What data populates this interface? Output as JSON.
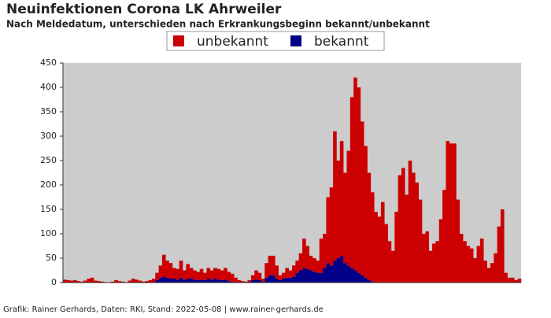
{
  "chart_data": {
    "type": "stacked-bar",
    "title": "Neuinfektionen Corona LK Ahrweiler",
    "subtitle": "Nach Meldedatum, unterschieden nach Erkrankungsbeginn bekannt/unbekannt",
    "footer": "Grafik: Rainer Gerhards, Daten: RKI, Stand: 2022-05-08 | www.rainer-gerhards.de",
    "ylim": [
      0,
      450
    ],
    "yticks": [
      0,
      50,
      100,
      150,
      200,
      250,
      300,
      350,
      400,
      450
    ],
    "legend": "top",
    "background": "#cccccc",
    "series": [
      {
        "name": "unbekannt",
        "color": "#cc0000",
        "values": [
          6,
          5,
          4,
          5,
          3,
          2,
          4,
          8,
          10,
          4,
          3,
          2,
          1,
          0,
          2,
          5,
          3,
          2,
          1,
          4,
          8,
          6,
          4,
          2,
          3,
          5,
          8,
          15,
          25,
          45,
          35,
          32,
          22,
          22,
          35,
          19,
          30,
          22,
          19,
          17,
          22,
          15,
          22,
          19,
          22,
          22,
          20,
          24,
          19,
          16,
          9,
          5,
          3,
          2,
          3,
          10,
          19,
          15,
          6,
          30,
          40,
          40,
          27,
          10,
          12,
          20,
          15,
          23,
          25,
          35,
          60,
          47,
          30,
          28,
          25,
          70,
          70,
          135,
          160,
          265,
          200,
          235,
          185,
          235,
          350,
          395,
          380,
          315,
          270,
          220,
          183,
          145,
          135,
          165,
          120,
          85,
          65,
          145,
          220,
          235,
          180,
          250,
          225,
          205,
          170,
          100,
          105,
          65,
          80,
          85,
          130,
          190,
          290,
          285,
          285,
          170,
          100,
          85,
          75,
          70,
          50,
          75,
          90,
          45,
          30,
          40,
          60,
          115,
          150,
          20,
          10,
          10,
          5,
          8
        ]
      },
      {
        "name": "bekannt",
        "color": "#00008b",
        "values": [
          0,
          0,
          0,
          0,
          0,
          0,
          0,
          0,
          0,
          0,
          0,
          0,
          0,
          0,
          0,
          0,
          0,
          0,
          0,
          0,
          0,
          0,
          0,
          0,
          0,
          0,
          0,
          5,
          10,
          12,
          10,
          8,
          8,
          6,
          10,
          6,
          8,
          8,
          6,
          5,
          6,
          5,
          8,
          6,
          8,
          6,
          5,
          6,
          3,
          2,
          1,
          0,
          0,
          0,
          2,
          5,
          6,
          5,
          2,
          10,
          15,
          15,
          8,
          5,
          8,
          10,
          10,
          12,
          20,
          25,
          30,
          28,
          25,
          22,
          20,
          20,
          30,
          40,
          35,
          45,
          50,
          55,
          40,
          35,
          30,
          25,
          20,
          15,
          10,
          5,
          2,
          0,
          0,
          0,
          0,
          0,
          0,
          0,
          0,
          0,
          0,
          0,
          0,
          0,
          0,
          0,
          0,
          0,
          0,
          0,
          0,
          0,
          0,
          0,
          0,
          0,
          0,
          0,
          0,
          0,
          0,
          0,
          0,
          0,
          0,
          0,
          0,
          0,
          0,
          0,
          0,
          0,
          0,
          0,
          0
        ]
      }
    ]
  }
}
